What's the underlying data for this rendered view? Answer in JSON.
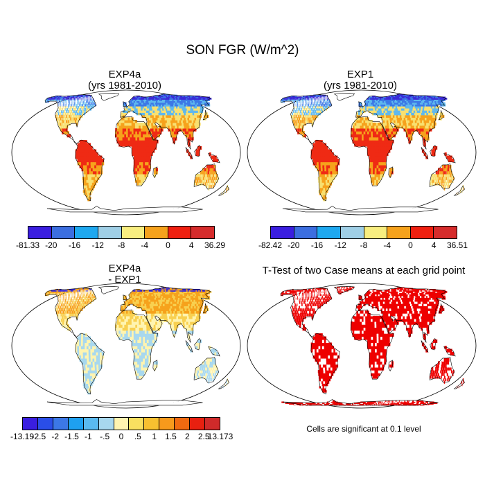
{
  "title": "SON FGR (W/m^2)",
  "panels": [
    {
      "title_line1": "EXP4a",
      "title_line2": "(yrs 1981-2010)"
    },
    {
      "title_line1": "EXP1",
      "title_line2": "(yrs 1981-2010)"
    },
    {
      "title_line1": "EXP4a",
      "title_line2": "- EXP1"
    },
    {
      "title_line1": "T-Test of two Case means at each grid point",
      "title_line2": ""
    }
  ],
  "colorbars": {
    "top_left": {
      "labels": [
        "-81.33",
        "-20",
        "-16",
        "-12",
        "-8",
        "-4",
        "0",
        "4",
        "36.29"
      ],
      "colors": [
        "#3a1ee0",
        "#3c6ee0",
        "#1ea8f0",
        "#9fcfe6",
        "#f8ee80",
        "#f6a21c",
        "#f02010",
        "#d62c2c"
      ]
    },
    "top_right": {
      "labels": [
        "-82.42",
        "-20",
        "-16",
        "-12",
        "-8",
        "-4",
        "0",
        "4",
        "36.51"
      ],
      "colors": [
        "#3a1ee0",
        "#3c6ee0",
        "#1ea8f0",
        "#9fcfe6",
        "#f8ee80",
        "#f6a21c",
        "#f02010",
        "#d62c2c"
      ]
    },
    "diff": {
      "labels": [
        "-13.19",
        "-2.5",
        "-2",
        "-1.5",
        "-1",
        "-.5",
        "0",
        ".5",
        "1",
        "1.5",
        "2",
        "2.5",
        "13.173"
      ],
      "colors": [
        "#3a1ee0",
        "#2a4ee8",
        "#3c78e6",
        "#1ea0f0",
        "#5abaf0",
        "#a8d8ee",
        "#fff4b0",
        "#f8e060",
        "#f8c030",
        "#f69a1c",
        "#f06a10",
        "#e82010",
        "#d02a2a"
      ]
    }
  },
  "note": "Cells are significant at 0.1 level",
  "map_palettes": {
    "exp": {
      "polar": "#3a2ad8",
      "subpolar": "#3c78e6",
      "boreal": "#5fb8ee",
      "temperate": "#f8e070",
      "subtropic": "#f6a21c",
      "tropic": "#ef2a14",
      "ice": "#ffffff",
      "ocean": "#ffffff",
      "coast": "#000000"
    },
    "diff": {
      "polar": "#3a2ad8",
      "subpolar": "#f6a21c",
      "boreal": "#f6a21c",
      "temperate": "#f8d050",
      "subtropic": "#fff4b0",
      "tropic": "#a8d8ee",
      "ice": "#ffffff",
      "ocean": "#ffffff",
      "coast": "#000000"
    },
    "ttest": {
      "sig": "#ee0000",
      "ocean": "#ffffff",
      "coast": "#000000"
    }
  }
}
